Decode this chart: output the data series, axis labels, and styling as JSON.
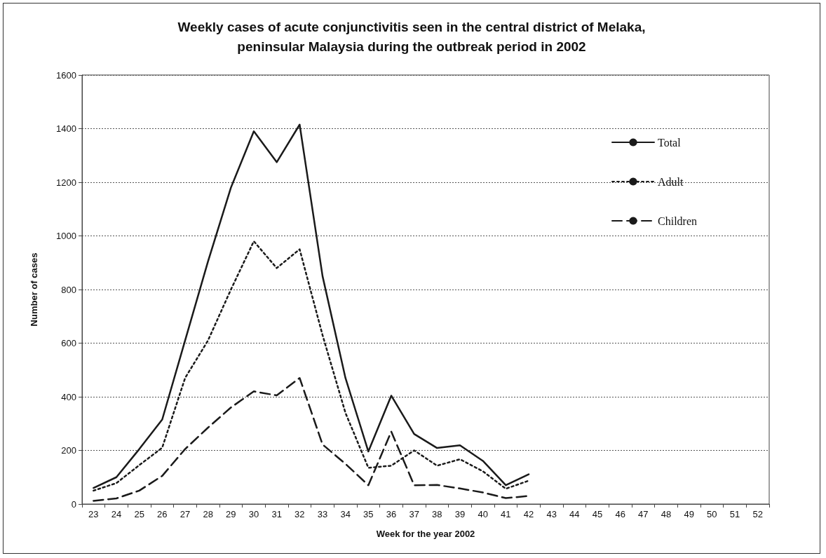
{
  "chart_data": {
    "type": "line",
    "title": "Weekly cases of acute conjunctivitis seen in the central district of Melaka,\npeninsular Malaysia during the outbreak period in 2002",
    "xlabel": "Week for the year 2002",
    "ylabel": "Number of cases",
    "categories": [
      "23",
      "24",
      "25",
      "26",
      "27",
      "28",
      "29",
      "30",
      "31",
      "32",
      "33",
      "34",
      "35",
      "36",
      "37",
      "38",
      "39",
      "40",
      "41",
      "42",
      "43",
      "44",
      "45",
      "46",
      "47",
      "48",
      "49",
      "50",
      "51",
      "52"
    ],
    "series": [
      {
        "name": "Total",
        "color": "#1a1a1a",
        "line_style": "solid",
        "values": [
          60,
          100,
          205,
          315,
          610,
          905,
          1180,
          1390,
          1275,
          1415,
          850,
          470,
          196,
          404,
          261,
          209,
          219,
          161,
          70,
          111,
          null,
          null,
          null,
          null,
          null,
          null,
          null,
          null,
          null,
          null
        ]
      },
      {
        "name": "Adult",
        "color": "#1a1a1a",
        "line_style": "dotted",
        "values": [
          50,
          78,
          145,
          210,
          470,
          610,
          800,
          980,
          880,
          950,
          630,
          340,
          135,
          143,
          200,
          143,
          167,
          122,
          57,
          87,
          null,
          null,
          null,
          null,
          null,
          null,
          null,
          null,
          null,
          null
        ]
      },
      {
        "name": "Children",
        "color": "#1a1a1a",
        "line_style": "dashed",
        "values": [
          12,
          21,
          50,
          105,
          205,
          285,
          360,
          420,
          405,
          470,
          222,
          150,
          70,
          270,
          70,
          71,
          58,
          43,
          22,
          30,
          null,
          null,
          null,
          null,
          null,
          null,
          null,
          null,
          null,
          null
        ]
      }
    ],
    "ylim": [
      0,
      1600
    ],
    "yticks": [
      0,
      200,
      400,
      600,
      800,
      1000,
      1200,
      1400,
      1600
    ],
    "grid": "y",
    "legend": "right",
    "marker": "none"
  }
}
